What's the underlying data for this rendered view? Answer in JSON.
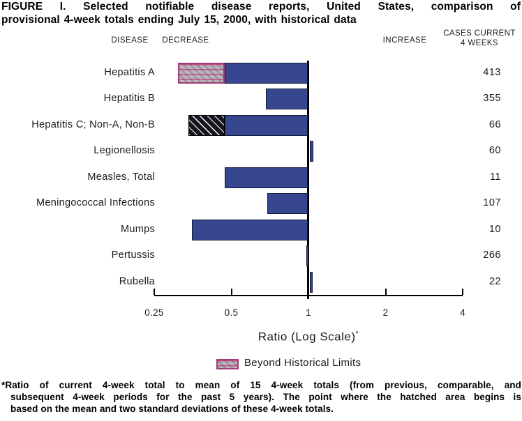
{
  "title": {
    "line1": "FIGURE I. Selected notifiable disease reports, United States, comparison of",
    "line2": "provisional 4-week totals ending July 15, 2000, with historical data"
  },
  "headers": {
    "disease": "DISEASE",
    "decrease": "DECREASE",
    "increase": "INCREASE",
    "cases_line1": "CASES CURRENT",
    "cases_line2": "4 WEEKS"
  },
  "chart_data": {
    "type": "bar",
    "orientation": "horizontal",
    "title": "Selected notifiable disease reports, ratio of current 4-week total to historical mean",
    "xlabel": "Ratio (Log Scale)",
    "axis": {
      "scale": "log2",
      "min": 0.25,
      "max": 4,
      "baseline_ratio": 1,
      "ticks": [
        {
          "value": 0.25,
          "label": "0.25"
        },
        {
          "value": 0.5,
          "label": "0.5"
        },
        {
          "value": 1,
          "label": "1"
        },
        {
          "value": 2,
          "label": "2"
        },
        {
          "value": 4,
          "label": "4"
        }
      ],
      "xlabel": "Ratio (Log Scale)",
      "xlabel_note": "*"
    },
    "rows": [
      {
        "disease": "Hepatitis A",
        "cases": 413,
        "ratio": 0.31,
        "beyond_historical_limit": true,
        "limit_ratio": 0.47,
        "beyond_style": "pink-hatch"
      },
      {
        "disease": "Hepatitis B",
        "cases": 355,
        "ratio": 0.68,
        "beyond_historical_limit": false
      },
      {
        "disease": "Hepatitis C; Non-A, Non-B",
        "cases": 66,
        "ratio": 0.34,
        "beyond_historical_limit": true,
        "limit_ratio": 0.47,
        "beyond_style": "black-hatch"
      },
      {
        "disease": "Legionellosis",
        "cases": 60,
        "ratio": 1.04,
        "beyond_historical_limit": false
      },
      {
        "disease": "Measles, Total",
        "cases": 11,
        "ratio": 0.47,
        "beyond_historical_limit": false
      },
      {
        "disease": "Meningococcal Infections",
        "cases": 107,
        "ratio": 0.69,
        "beyond_historical_limit": false
      },
      {
        "disease": "Mumps",
        "cases": 10,
        "ratio": 0.35,
        "beyond_historical_limit": false
      },
      {
        "disease": "Pertussis",
        "cases": 266,
        "ratio": 0.98,
        "beyond_historical_limit": false
      },
      {
        "disease": "Rubella",
        "cases": 22,
        "ratio": 1.03,
        "beyond_historical_limit": false
      }
    ],
    "legend": {
      "label": "Beyond Historical Limits",
      "swatch": "pink-hatch",
      "position": "bottom-center"
    },
    "colors": {
      "bar": "#36478f",
      "bar_border": "#131c38",
      "hatch_pink_bg": "#b9b6b9",
      "hatch_pink_line": "#bf4f8d",
      "hatch_pink_border": "#a03c7c",
      "hatch_black_bg": "#15151d",
      "hatch_black_line": "#ffffff",
      "axis": "#000000",
      "text": "#1a1a1a"
    },
    "grid": false
  },
  "footnote": {
    "line1": "*Ratio of current 4-week total to mean of 15 4-week totals (from previous, comparable, and",
    "line2": "subsequent 4-week periods for the past 5 years). The point where the hatched area begins is",
    "line3": "based on the mean and two standard deviations of these 4-week totals."
  }
}
